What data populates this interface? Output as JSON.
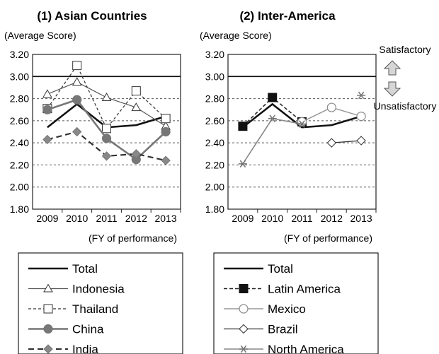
{
  "chart_data": [
    {
      "type": "line",
      "title": "(1) Asian Countries",
      "ylabel": "(Average Score)",
      "xlabel": "(FY of performance)",
      "ylim": [
        1.8,
        3.2
      ],
      "yticks": [
        "3.20",
        "3.00",
        "2.80",
        "2.60",
        "2.40",
        "2.20",
        "2.00",
        "1.80"
      ],
      "categories": [
        "2009",
        "2010",
        "2011",
        "2012",
        "2013"
      ],
      "grid": "dashed horizontal, solid line at 3.00",
      "legend": "bottom",
      "series": [
        {
          "name": "Total",
          "style": "solid-dark",
          "values": [
            2.54,
            2.75,
            2.54,
            2.56,
            2.64
          ]
        },
        {
          "name": "Indonesia",
          "style": "triangle",
          "values": [
            2.84,
            2.95,
            2.81,
            2.72,
            2.55
          ]
        },
        {
          "name": "Thailand",
          "style": "square-open-dashed",
          "values": [
            2.71,
            3.1,
            2.53,
            2.87,
            2.62
          ]
        },
        {
          "name": "China",
          "style": "circle-gray",
          "values": [
            2.7,
            2.79,
            2.44,
            2.25,
            2.5
          ]
        },
        {
          "name": "India",
          "style": "diamond-gray-dashed",
          "values": [
            2.43,
            2.5,
            2.28,
            2.3,
            2.24
          ]
        }
      ]
    },
    {
      "type": "line",
      "title": "(2) Inter-America",
      "ylabel": "(Average Score)",
      "xlabel": "(FY of performance)",
      "ylim": [
        1.8,
        3.2
      ],
      "yticks": [
        "3.20",
        "3.00",
        "2.80",
        "2.60",
        "2.40",
        "2.20",
        "2.00",
        "1.80"
      ],
      "categories": [
        "2009",
        "2010",
        "2011",
        "2012",
        "2013"
      ],
      "grid": "dashed horizontal, solid line at 3.00",
      "legend": "bottom",
      "series": [
        {
          "name": "Total",
          "style": "solid-dark",
          "values": [
            2.54,
            2.75,
            2.54,
            2.56,
            2.64
          ]
        },
        {
          "name": "Latin America",
          "style": "square-filled-dashed",
          "values": [
            2.55,
            2.81,
            2.59,
            null,
            null
          ]
        },
        {
          "name": "Mexico",
          "style": "circle-open-gray",
          "values": [
            null,
            null,
            2.59,
            2.72,
            2.64
          ]
        },
        {
          "name": "Brazil",
          "style": "diamond-open",
          "values": [
            null,
            null,
            null,
            2.4,
            2.42
          ]
        },
        {
          "name": "North America",
          "style": "star-gray",
          "values": [
            2.21,
            2.62,
            2.57,
            null,
            2.83
          ]
        }
      ]
    }
  ],
  "annotations": {
    "satisfactory": "Satisfactory",
    "unsatisfactory": "Unsatisfactory"
  }
}
